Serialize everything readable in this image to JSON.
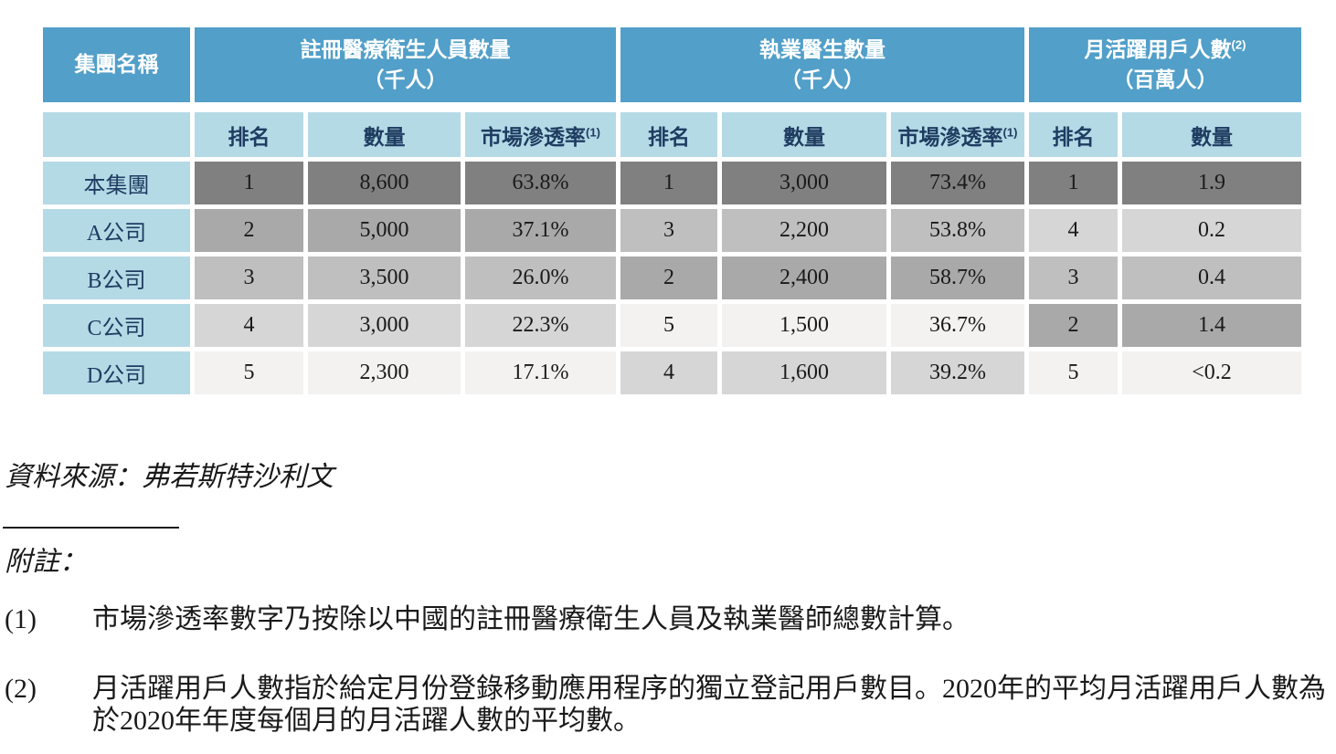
{
  "colors": {
    "header_blue": "#529FC9",
    "light_blue": "#B4DAE6",
    "navy": "#1F3C61",
    "rank1": "#808080",
    "rank2": "#A9A9A9",
    "rank3": "#BFBFBF",
    "rank4": "#D6D6D6",
    "rank5": "#F3F2F0"
  },
  "table": {
    "corner_header": "集團名稱",
    "groups": [
      {
        "title": "註冊醫療衛生人員數量",
        "sup": "",
        "unit": "（千人）",
        "subcols": [
          {
            "label": "排名",
            "sup": ""
          },
          {
            "label": "數量",
            "sup": ""
          },
          {
            "label": "市場滲透率",
            "sup": "(1)"
          }
        ]
      },
      {
        "title": "執業醫生數量",
        "sup": "",
        "unit": "（千人）",
        "subcols": [
          {
            "label": "排名",
            "sup": ""
          },
          {
            "label": "數量",
            "sup": ""
          },
          {
            "label": "市場滲透率",
            "sup": "(1)"
          }
        ]
      },
      {
        "title": "月活躍用戶人數",
        "sup": "(2)",
        "unit": "（百萬人）",
        "subcols": [
          {
            "label": "排名",
            "sup": ""
          },
          {
            "label": "數量",
            "sup": ""
          }
        ]
      }
    ],
    "rows": [
      {
        "name": "本集團",
        "cells": [
          {
            "value": "1",
            "rank": 1
          },
          {
            "value": "8,600",
            "rank": 1
          },
          {
            "value": "63.8%",
            "rank": 1
          },
          {
            "value": "1",
            "rank": 1
          },
          {
            "value": "3,000",
            "rank": 1
          },
          {
            "value": "73.4%",
            "rank": 1
          },
          {
            "value": "1",
            "rank": 1
          },
          {
            "value": "1.9",
            "rank": 1
          }
        ]
      },
      {
        "name": "A公司",
        "cells": [
          {
            "value": "2",
            "rank": 2
          },
          {
            "value": "5,000",
            "rank": 2
          },
          {
            "value": "37.1%",
            "rank": 2
          },
          {
            "value": "3",
            "rank": 3
          },
          {
            "value": "2,200",
            "rank": 3
          },
          {
            "value": "53.8%",
            "rank": 3
          },
          {
            "value": "4",
            "rank": 4
          },
          {
            "value": "0.2",
            "rank": 4
          }
        ]
      },
      {
        "name": "B公司",
        "cells": [
          {
            "value": "3",
            "rank": 3
          },
          {
            "value": "3,500",
            "rank": 3
          },
          {
            "value": "26.0%",
            "rank": 3
          },
          {
            "value": "2",
            "rank": 2
          },
          {
            "value": "2,400",
            "rank": 2
          },
          {
            "value": "58.7%",
            "rank": 2
          },
          {
            "value": "3",
            "rank": 3
          },
          {
            "value": "0.4",
            "rank": 3
          }
        ]
      },
      {
        "name": "C公司",
        "cells": [
          {
            "value": "4",
            "rank": 4
          },
          {
            "value": "3,000",
            "rank": 4
          },
          {
            "value": "22.3%",
            "rank": 4
          },
          {
            "value": "5",
            "rank": 5
          },
          {
            "value": "1,500",
            "rank": 5
          },
          {
            "value": "36.7%",
            "rank": 5
          },
          {
            "value": "2",
            "rank": 2
          },
          {
            "value": "1.4",
            "rank": 2
          }
        ]
      },
      {
        "name": "D公司",
        "cells": [
          {
            "value": "5",
            "rank": 5
          },
          {
            "value": "2,300",
            "rank": 5
          },
          {
            "value": "17.1%",
            "rank": 5
          },
          {
            "value": "4",
            "rank": 4
          },
          {
            "value": "1,600",
            "rank": 4
          },
          {
            "value": "39.2%",
            "rank": 4
          },
          {
            "value": "5",
            "rank": 5
          },
          {
            "value": "<0.2",
            "rank": 5
          }
        ]
      }
    ]
  },
  "source_line": "資料來源：弗若斯特沙利文",
  "notes_heading": "附註：",
  "notes": [
    {
      "marker": "(1)",
      "text": "市場滲透率數字乃按除以中國的註冊醫療衛生人員及執業醫師總數計算。"
    },
    {
      "marker": "(2)",
      "text": "月活躍用戶人數指於給定月份登錄移動應用程序的獨立登記用戶數目。2020年的平均月活躍用戶人數為於2020年年度每個月的月活躍人數的平均數。"
    }
  ]
}
